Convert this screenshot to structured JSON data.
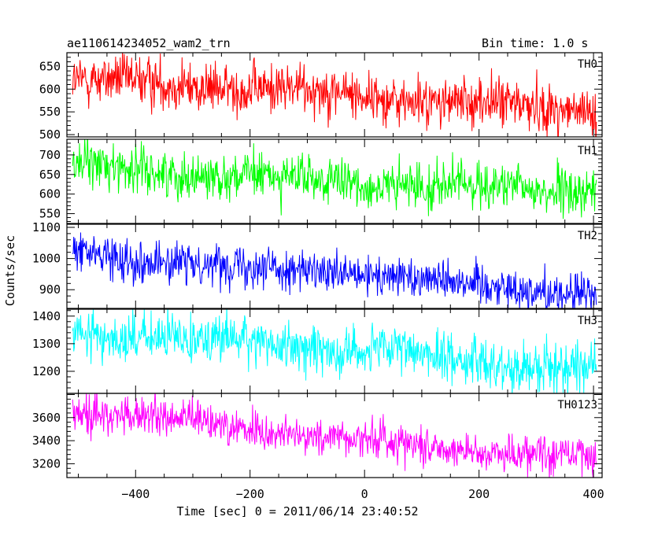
{
  "header": {
    "title": "ae110614234052_wam2_trn",
    "bin_time": "Bin time: 1.0 s"
  },
  "axes": {
    "xlabel": "Time [sec] 0 = 2011/06/14 23:40:52",
    "ylabel": "Counts/sec"
  },
  "chart_data": [
    {
      "type": "line",
      "name": "TH0",
      "color": "#ff0000",
      "xlim": [
        -520,
        415
      ],
      "ylim": [
        495,
        680
      ],
      "yticks": [
        500,
        550,
        600,
        650
      ],
      "x_range": [
        -510,
        405
      ],
      "trend_start": 618,
      "trend_end": 558,
      "noise": 28,
      "title": "ae110614234052_wam2_trn"
    },
    {
      "type": "line",
      "name": "TH1",
      "color": "#00ff00",
      "xlim": [
        -520,
        415
      ],
      "ylim": [
        525,
        740
      ],
      "yticks": [
        550,
        600,
        650,
        700
      ],
      "x_range": [
        -510,
        405
      ],
      "trend_start": 668,
      "trend_end": 605,
      "noise": 30
    },
    {
      "type": "line",
      "name": "TH2",
      "color": "#0000ff",
      "xlim": [
        -520,
        415
      ],
      "ylim": [
        840,
        1110
      ],
      "yticks": [
        900,
        1000,
        1100
      ],
      "x_range": [
        -510,
        405
      ],
      "trend_start": 1025,
      "trend_end": 880,
      "noise": 33
    },
    {
      "type": "line",
      "name": "TH3",
      "color": "#00ffff",
      "xlim": [
        -520,
        415
      ],
      "ylim": [
        1120,
        1425
      ],
      "yticks": [
        1200,
        1300,
        1400
      ],
      "x_range": [
        -510,
        405
      ],
      "trend_start": 1340,
      "trend_end": 1215,
      "noise": 45
    },
    {
      "type": "line",
      "name": "TH0123",
      "color": "#ff00ff",
      "xlim": [
        -520,
        415
      ],
      "ylim": [
        3080,
        3810
      ],
      "yticks": [
        3200,
        3400,
        3600
      ],
      "xticks": [
        -400,
        -200,
        0,
        200,
        400
      ],
      "x_range": [
        -510,
        405
      ],
      "trend_start": 3650,
      "trend_end": 3240,
      "noise": 85,
      "xlabel": "Time [sec] 0 = 2011/06/14 23:40:52"
    }
  ]
}
